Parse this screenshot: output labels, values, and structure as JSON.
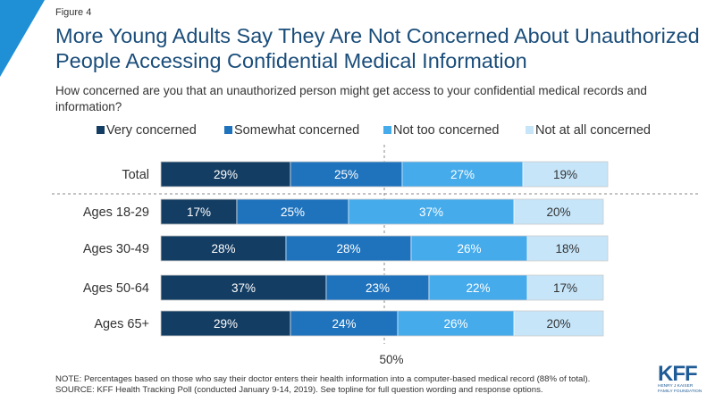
{
  "figure_label": "Figure 4",
  "logo": {
    "main": "KFF",
    "line1": "HENRY J KAISER",
    "line2": "FAMILY FOUNDATION"
  },
  "footnote": {
    "note": "NOTE: Percentages based on those who say their doctor enters their health information into a computer-based medical record (88% of total).",
    "source": "SOURCE: KFF Health Tracking Poll (conducted January 9-14, 2019). See topline for full question wording and response options."
  },
  "colors": {
    "very": "#143d63",
    "somewhat": "#1f73bd",
    "nottoo": "#45abeb",
    "notatall": "#c6e5f9"
  },
  "chart_data": {
    "type": "bar",
    "orientation": "horizontal",
    "stacked": true,
    "title": "More Young Adults Say They Are Not Concerned About Unauthorized People Accessing Confidential Medical Information",
    "subtitle": "How concerned are you that an unauthorized person might get access to your confidential medical records and information?",
    "categories": [
      "Total",
      "Ages 18-29",
      "Ages 30-49",
      "Ages 50-64",
      "Ages 65+"
    ],
    "series": [
      {
        "name": "Very concerned",
        "values": [
          29,
          17,
          28,
          37,
          29
        ]
      },
      {
        "name": "Somewhat concerned",
        "values": [
          25,
          25,
          28,
          23,
          24
        ]
      },
      {
        "name": "Not too concerned",
        "values": [
          27,
          37,
          26,
          22,
          26
        ]
      },
      {
        "name": "Not at all concerned",
        "values": [
          19,
          20,
          18,
          17,
          20
        ]
      }
    ],
    "reference_line": {
      "value": 50,
      "label": "50%"
    },
    "xlim": [
      0,
      100
    ],
    "legend_position": "top",
    "grid": false
  }
}
